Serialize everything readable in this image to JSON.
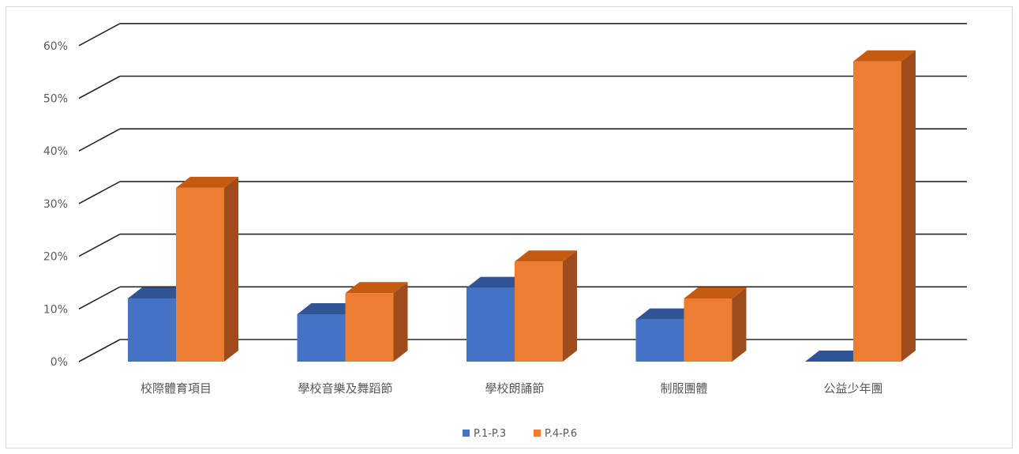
{
  "chart_data": {
    "type": "bar",
    "style": "3d-clustered-column",
    "title": "",
    "xlabel": "",
    "ylabel": "",
    "ylim": [
      0,
      60
    ],
    "yticks": [
      "0%",
      "10%",
      "20%",
      "30%",
      "40%",
      "50%",
      "60%"
    ],
    "grid": true,
    "legend_position": "bottom",
    "categories": [
      "校際體育項目",
      "學校音樂及舞蹈節",
      "學校朗誦節",
      "制服團體",
      "公益少年團"
    ],
    "series": [
      {
        "name": "P.1-P.3",
        "color": "#4472C4",
        "side_color": "#2F5597",
        "top_color": "#305495",
        "values": [
          12,
          9,
          14,
          8,
          0
        ]
      },
      {
        "name": "P.4-P.6",
        "color": "#ED7D31",
        "side_color": "#9E4C1C",
        "top_color": "#C55A11",
        "values": [
          33,
          13,
          19,
          12,
          57
        ]
      }
    ]
  }
}
